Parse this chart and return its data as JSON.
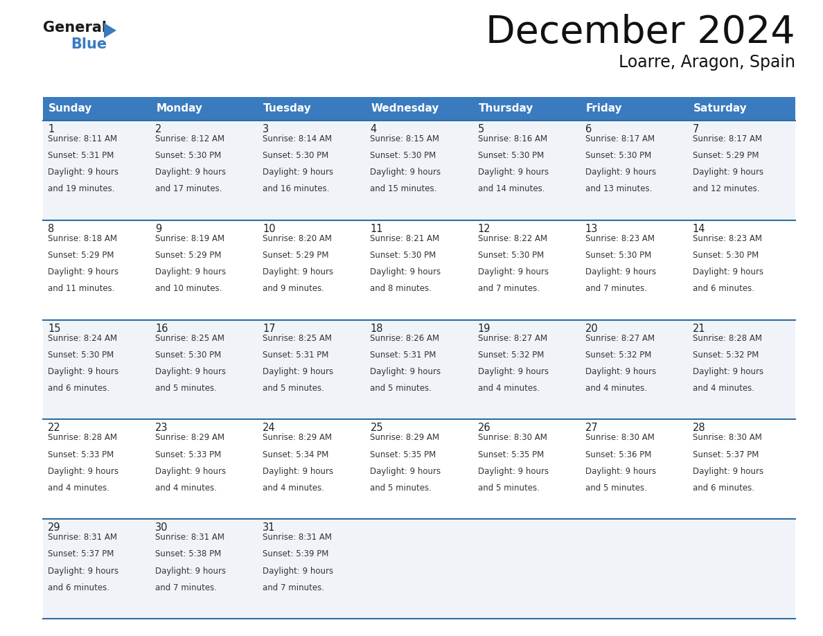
{
  "title": "December 2024",
  "subtitle": "Loarre, Aragon, Spain",
  "header_bg": "#3a7bbf",
  "header_text": "#ffffff",
  "row_line_color": "#2d6da3",
  "cell_bg_light": "#f0f4f8",
  "cell_bg_white": "#ffffff",
  "days_of_week": [
    "Sunday",
    "Monday",
    "Tuesday",
    "Wednesday",
    "Thursday",
    "Friday",
    "Saturday"
  ],
  "calendar": [
    [
      {
        "day": "1",
        "sunrise": "8:11 AM",
        "sunset": "5:31 PM",
        "daylight_h": "9 hours",
        "daylight_m": "and 19 minutes."
      },
      {
        "day": "2",
        "sunrise": "8:12 AM",
        "sunset": "5:30 PM",
        "daylight_h": "9 hours",
        "daylight_m": "and 17 minutes."
      },
      {
        "day": "3",
        "sunrise": "8:14 AM",
        "sunset": "5:30 PM",
        "daylight_h": "9 hours",
        "daylight_m": "and 16 minutes."
      },
      {
        "day": "4",
        "sunrise": "8:15 AM",
        "sunset": "5:30 PM",
        "daylight_h": "9 hours",
        "daylight_m": "and 15 minutes."
      },
      {
        "day": "5",
        "sunrise": "8:16 AM",
        "sunset": "5:30 PM",
        "daylight_h": "9 hours",
        "daylight_m": "and 14 minutes."
      },
      {
        "day": "6",
        "sunrise": "8:17 AM",
        "sunset": "5:30 PM",
        "daylight_h": "9 hours",
        "daylight_m": "and 13 minutes."
      },
      {
        "day": "7",
        "sunrise": "8:17 AM",
        "sunset": "5:29 PM",
        "daylight_h": "9 hours",
        "daylight_m": "and 12 minutes."
      }
    ],
    [
      {
        "day": "8",
        "sunrise": "8:18 AM",
        "sunset": "5:29 PM",
        "daylight_h": "9 hours",
        "daylight_m": "and 11 minutes."
      },
      {
        "day": "9",
        "sunrise": "8:19 AM",
        "sunset": "5:29 PM",
        "daylight_h": "9 hours",
        "daylight_m": "and 10 minutes."
      },
      {
        "day": "10",
        "sunrise": "8:20 AM",
        "sunset": "5:29 PM",
        "daylight_h": "9 hours",
        "daylight_m": "and 9 minutes."
      },
      {
        "day": "11",
        "sunrise": "8:21 AM",
        "sunset": "5:30 PM",
        "daylight_h": "9 hours",
        "daylight_m": "and 8 minutes."
      },
      {
        "day": "12",
        "sunrise": "8:22 AM",
        "sunset": "5:30 PM",
        "daylight_h": "9 hours",
        "daylight_m": "and 7 minutes."
      },
      {
        "day": "13",
        "sunrise": "8:23 AM",
        "sunset": "5:30 PM",
        "daylight_h": "9 hours",
        "daylight_m": "and 7 minutes."
      },
      {
        "day": "14",
        "sunrise": "8:23 AM",
        "sunset": "5:30 PM",
        "daylight_h": "9 hours",
        "daylight_m": "and 6 minutes."
      }
    ],
    [
      {
        "day": "15",
        "sunrise": "8:24 AM",
        "sunset": "5:30 PM",
        "daylight_h": "9 hours",
        "daylight_m": "and 6 minutes."
      },
      {
        "day": "16",
        "sunrise": "8:25 AM",
        "sunset": "5:30 PM",
        "daylight_h": "9 hours",
        "daylight_m": "and 5 minutes."
      },
      {
        "day": "17",
        "sunrise": "8:25 AM",
        "sunset": "5:31 PM",
        "daylight_h": "9 hours",
        "daylight_m": "and 5 minutes."
      },
      {
        "day": "18",
        "sunrise": "8:26 AM",
        "sunset": "5:31 PM",
        "daylight_h": "9 hours",
        "daylight_m": "and 5 minutes."
      },
      {
        "day": "19",
        "sunrise": "8:27 AM",
        "sunset": "5:32 PM",
        "daylight_h": "9 hours",
        "daylight_m": "and 4 minutes."
      },
      {
        "day": "20",
        "sunrise": "8:27 AM",
        "sunset": "5:32 PM",
        "daylight_h": "9 hours",
        "daylight_m": "and 4 minutes."
      },
      {
        "day": "21",
        "sunrise": "8:28 AM",
        "sunset": "5:32 PM",
        "daylight_h": "9 hours",
        "daylight_m": "and 4 minutes."
      }
    ],
    [
      {
        "day": "22",
        "sunrise": "8:28 AM",
        "sunset": "5:33 PM",
        "daylight_h": "9 hours",
        "daylight_m": "and 4 minutes."
      },
      {
        "day": "23",
        "sunrise": "8:29 AM",
        "sunset": "5:33 PM",
        "daylight_h": "9 hours",
        "daylight_m": "and 4 minutes."
      },
      {
        "day": "24",
        "sunrise": "8:29 AM",
        "sunset": "5:34 PM",
        "daylight_h": "9 hours",
        "daylight_m": "and 4 minutes."
      },
      {
        "day": "25",
        "sunrise": "8:29 AM",
        "sunset": "5:35 PM",
        "daylight_h": "9 hours",
        "daylight_m": "and 5 minutes."
      },
      {
        "day": "26",
        "sunrise": "8:30 AM",
        "sunset": "5:35 PM",
        "daylight_h": "9 hours",
        "daylight_m": "and 5 minutes."
      },
      {
        "day": "27",
        "sunrise": "8:30 AM",
        "sunset": "5:36 PM",
        "daylight_h": "9 hours",
        "daylight_m": "and 5 minutes."
      },
      {
        "day": "28",
        "sunrise": "8:30 AM",
        "sunset": "5:37 PM",
        "daylight_h": "9 hours",
        "daylight_m": "and 6 minutes."
      }
    ],
    [
      {
        "day": "29",
        "sunrise": "8:31 AM",
        "sunset": "5:37 PM",
        "daylight_h": "9 hours",
        "daylight_m": "and 6 minutes."
      },
      {
        "day": "30",
        "sunrise": "8:31 AM",
        "sunset": "5:38 PM",
        "daylight_h": "9 hours",
        "daylight_m": "and 7 minutes."
      },
      {
        "day": "31",
        "sunrise": "8:31 AM",
        "sunset": "5:39 PM",
        "daylight_h": "9 hours",
        "daylight_m": "and 7 minutes."
      },
      null,
      null,
      null,
      null
    ]
  ]
}
